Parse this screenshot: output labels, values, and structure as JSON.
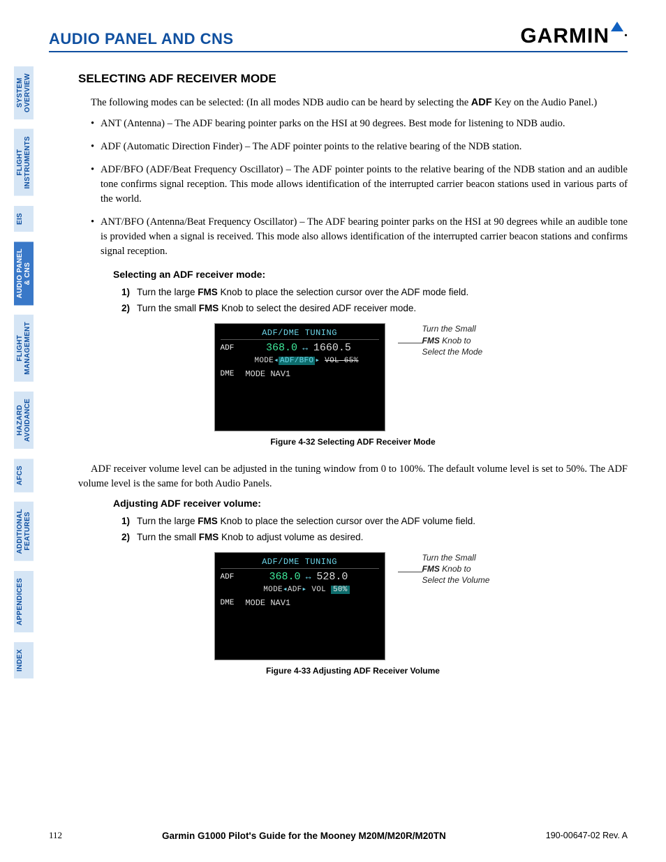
{
  "header": {
    "title": "AUDIO PANEL AND CNS",
    "brand": "GARMIN"
  },
  "sidebar": [
    {
      "label": "SYSTEM\nOVERVIEW",
      "light": true
    },
    {
      "label": "FLIGHT\nINSTRUMENTS",
      "light": true
    },
    {
      "label": "EIS",
      "light": true
    },
    {
      "label": "AUDIO PANEL\n& CNS",
      "light": false
    },
    {
      "label": "FLIGHT\nMANAGEMENT",
      "light": true
    },
    {
      "label": "HAZARD\nAVOIDANCE",
      "light": true
    },
    {
      "label": "AFCS",
      "light": true
    },
    {
      "label": "ADDITIONAL\nFEATURES",
      "light": true
    },
    {
      "label": "APPENDICES",
      "light": true
    },
    {
      "label": "INDEX",
      "light": true
    }
  ],
  "h2": "SELECTING ADF RECEIVER MODE",
  "intro": {
    "pre": "The following modes can be selected: (In all modes NDB audio can be heard by selecting the ",
    "key": "ADF",
    "post": " Key on the Audio Panel.)"
  },
  "bullets": [
    "ANT (Antenna) – The ADF bearing pointer parks on the HSI at 90 degrees.  Best mode for listening to NDB audio.",
    "ADF (Automatic Direction Finder) – The ADF pointer points to the relative bearing of the NDB station.",
    "ADF/BFO (ADF/Beat Frequency Oscillator) – The ADF pointer points to the relative bearing of the NDB station and an audible tone confirms signal reception.  This mode allows identification of the interrupted carrier beacon stations used in various parts of the world.",
    "ANT/BFO (Antenna/Beat Frequency Oscillator) – The ADF bearing pointer parks on the HSI at 90 degrees while an audible tone is provided when a signal is received.  This mode also allows identification of the interrupted carrier beacon stations and confirms signal reception."
  ],
  "proc1": {
    "title": "Selecting an ADF receiver mode:",
    "steps": [
      {
        "n": "1)",
        "pre": "Turn the large ",
        "b": "FMS",
        "post": " Knob to place the selection cursor over the ADF mode field."
      },
      {
        "n": "2)",
        "pre": "Turn the small ",
        "b": "FMS",
        "post": " Knob to select the desired ADF receiver mode."
      }
    ]
  },
  "fig1": {
    "title": "ADF/DME TUNING",
    "adf_label": "ADF",
    "freq_active": "368.0",
    "freq_standby": "1660.5",
    "mode_pre": "MODE",
    "mode_sel": "ADF/BFO",
    "vol_label": "VOL",
    "vol_val": "65%",
    "dme_label": "DME",
    "dme_mode": "MODE  NAV1",
    "callout": {
      "l1": "Turn the Small",
      "l2": "FMS",
      "l3": " Knob to Select the Mode"
    },
    "caption": "Figure 4-32  Selecting ADF Receiver Mode"
  },
  "para2": "ADF receiver volume level can be adjusted in the tuning window from 0 to 100%.  The default volume level is set to 50%.  The ADF volume level is the same for both Audio Panels.",
  "proc2": {
    "title": "Adjusting ADF receiver volume:",
    "steps": [
      {
        "n": "1)",
        "pre": "Turn the large ",
        "b": "FMS",
        "post": " Knob to place the selection cursor over the ADF volume field."
      },
      {
        "n": "2)",
        "pre": "Turn the small ",
        "b": "FMS",
        "post": " Knob to adjust volume as desired."
      }
    ]
  },
  "fig2": {
    "title": "ADF/DME TUNING",
    "adf_label": "ADF",
    "freq_active": "368.0",
    "freq_standby": "528.0",
    "mode_pre": "MODE",
    "mode_sel": "ADF",
    "vol_label": "VOL",
    "vol_val": "50%",
    "dme_label": "DME",
    "dme_mode": "MODE  NAV1",
    "callout": {
      "l1": "Turn the Small",
      "l2": "FMS",
      "l3": " Knob to Select the Volume"
    },
    "caption": "Figure 4-33  Adjusting ADF Receiver Volume"
  },
  "footer": {
    "page": "112",
    "center": "Garmin G1000 Pilot's Guide for the Mooney M20M/M20R/M20TN",
    "right": "190-00647-02   Rev. A"
  }
}
